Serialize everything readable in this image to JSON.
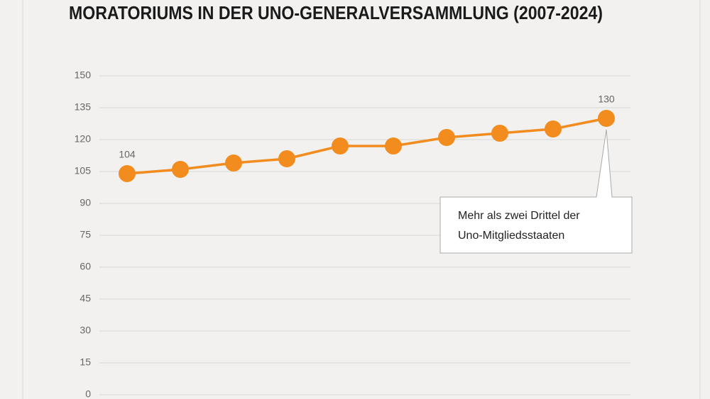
{
  "chart_data": {
    "type": "line",
    "title": "MORATORIUMS IN DER UNO-GENERALVERSAMMLUNG (2007-2024)",
    "categories": [
      null,
      null,
      null,
      null,
      null,
      null,
      null,
      null,
      null,
      null
    ],
    "series": [
      {
        "name": null,
        "color": "#f28c1e",
        "values": [
          104,
          106,
          109,
          111,
          117,
          117,
          121,
          123,
          125,
          130
        ]
      }
    ],
    "data_labels": "first-last",
    "ylim": [
      0,
      150
    ],
    "yticks": [
      0,
      15,
      30,
      45,
      60,
      75,
      90,
      105,
      120,
      135,
      150
    ],
    "grid": true,
    "annotation": [
      "Mehr als zwei Drittel der",
      "Uno-Mitgliedsstaaten"
    ]
  }
}
